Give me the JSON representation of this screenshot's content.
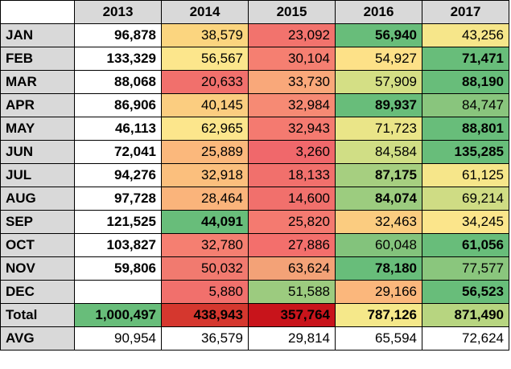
{
  "table": {
    "headers": [
      "",
      "2013",
      "2014",
      "2015",
      "2016",
      "2017"
    ],
    "rows": [
      {
        "label": "JAN",
        "cells": [
          {
            "value": "96,878",
            "color": "#ffffff",
            "bold": true
          },
          {
            "value": "38,579",
            "color": "#fbd57f",
            "bold": false
          },
          {
            "value": "23,092",
            "color": "#f2736d",
            "bold": false
          },
          {
            "value": "56,940",
            "color": "#68bd7a",
            "bold": true
          },
          {
            "value": "43,256",
            "color": "#f6e68a",
            "bold": false
          }
        ]
      },
      {
        "label": "FEB",
        "cells": [
          {
            "value": "133,329",
            "color": "#ffffff",
            "bold": true
          },
          {
            "value": "56,567",
            "color": "#fce68c",
            "bold": false
          },
          {
            "value": "30,104",
            "color": "#f57f71",
            "bold": false
          },
          {
            "value": "54,927",
            "color": "#fde188",
            "bold": false
          },
          {
            "value": "71,471",
            "color": "#68bd7a",
            "bold": true
          }
        ]
      },
      {
        "label": "MAR",
        "cells": [
          {
            "value": "88,068",
            "color": "#ffffff",
            "bold": true
          },
          {
            "value": "20,633",
            "color": "#f1706c",
            "bold": false
          },
          {
            "value": "33,730",
            "color": "#f9a87a",
            "bold": false
          },
          {
            "value": "57,909",
            "color": "#d4df85",
            "bold": false
          },
          {
            "value": "88,190",
            "color": "#68bd7a",
            "bold": true
          }
        ]
      },
      {
        "label": "APR",
        "cells": [
          {
            "value": "86,906",
            "color": "#ffffff",
            "bold": true
          },
          {
            "value": "40,145",
            "color": "#fbcd80",
            "bold": false
          },
          {
            "value": "32,984",
            "color": "#f68a74",
            "bold": false
          },
          {
            "value": "89,937",
            "color": "#68bd7a",
            "bold": true
          },
          {
            "value": "84,747",
            "color": "#89c57d",
            "bold": false
          }
        ]
      },
      {
        "label": "MAY",
        "cells": [
          {
            "value": "46,113",
            "color": "#ffffff",
            "bold": true
          },
          {
            "value": "62,965",
            "color": "#fce68c",
            "bold": false
          },
          {
            "value": "32,943",
            "color": "#f47a70",
            "bold": false
          },
          {
            "value": "71,723",
            "color": "#eae588",
            "bold": false
          },
          {
            "value": "88,801",
            "color": "#68bd7a",
            "bold": true
          }
        ]
      },
      {
        "label": "JUN",
        "cells": [
          {
            "value": "72,041",
            "color": "#ffffff",
            "bold": true
          },
          {
            "value": "25,889",
            "color": "#fbb87c",
            "bold": false
          },
          {
            "value": "3,260",
            "color": "#f0686b",
            "bold": false
          },
          {
            "value": "84,584",
            "color": "#d0de85",
            "bold": false
          },
          {
            "value": "135,285",
            "color": "#68bd7a",
            "bold": true
          }
        ]
      },
      {
        "label": "JUL",
        "cells": [
          {
            "value": "94,276",
            "color": "#ffffff",
            "bold": true
          },
          {
            "value": "32,918",
            "color": "#fbbf7d",
            "bold": false
          },
          {
            "value": "18,133",
            "color": "#f1706c",
            "bold": false
          },
          {
            "value": "87,175",
            "color": "#a6cf80",
            "bold": true
          },
          {
            "value": "61,125",
            "color": "#f6e68a",
            "bold": false
          }
        ]
      },
      {
        "label": "AUG",
        "cells": [
          {
            "value": "97,728",
            "color": "#ffffff",
            "bold": true
          },
          {
            "value": "28,464",
            "color": "#fab47b",
            "bold": false
          },
          {
            "value": "14,600",
            "color": "#f1706c",
            "bold": false
          },
          {
            "value": "84,074",
            "color": "#9ccc7f",
            "bold": true
          },
          {
            "value": "69,214",
            "color": "#cfdc84",
            "bold": false
          }
        ]
      },
      {
        "label": "SEP",
        "cells": [
          {
            "value": "121,525",
            "color": "#ffffff",
            "bold": true
          },
          {
            "value": "44,091",
            "color": "#68bd7a",
            "bold": true
          },
          {
            "value": "25,820",
            "color": "#f47a70",
            "bold": false
          },
          {
            "value": "32,463",
            "color": "#fbcc80",
            "bold": false
          },
          {
            "value": "34,245",
            "color": "#fbe58b",
            "bold": false
          }
        ]
      },
      {
        "label": "OCT",
        "cells": [
          {
            "value": "103,827",
            "color": "#ffffff",
            "bold": true
          },
          {
            "value": "32,780",
            "color": "#f57f71",
            "bold": false
          },
          {
            "value": "27,886",
            "color": "#f36f6c",
            "bold": false
          },
          {
            "value": "60,048",
            "color": "#83c37c",
            "bold": false
          },
          {
            "value": "61,056",
            "color": "#68bd7a",
            "bold": true
          }
        ]
      },
      {
        "label": "NOV",
        "cells": [
          {
            "value": "59,806",
            "color": "#ffffff",
            "bold": true
          },
          {
            "value": "50,032",
            "color": "#f17a6f",
            "bold": false
          },
          {
            "value": "63,624",
            "color": "#f3a277",
            "bold": false
          },
          {
            "value": "78,180",
            "color": "#68bd7a",
            "bold": true
          },
          {
            "value": "77,577",
            "color": "#8ac67d",
            "bold": false
          }
        ]
      },
      {
        "label": "DEC",
        "cells": [
          {
            "value": "",
            "color": "#ffffff",
            "bold": true
          },
          {
            "value": "5,880",
            "color": "#f1706c",
            "bold": false
          },
          {
            "value": "51,588",
            "color": "#9ccb7f",
            "bold": false
          },
          {
            "value": "29,166",
            "color": "#fbb77c",
            "bold": false
          },
          {
            "value": "56,523",
            "color": "#68bd7a",
            "bold": true
          }
        ]
      }
    ],
    "total": {
      "label": "Total",
      "cells": [
        {
          "value": "1,000,497",
          "color": "#68bd7a",
          "bold": true
        },
        {
          "value": "438,943",
          "color": "#d5372e",
          "bold": true
        },
        {
          "value": "357,764",
          "color": "#c8141b",
          "bold": true
        },
        {
          "value": "787,126",
          "color": "#f5e88a",
          "bold": true
        },
        {
          "value": "871,490",
          "color": "#b7d580",
          "bold": true
        }
      ]
    },
    "avg": {
      "label": "AVG",
      "cells": [
        {
          "value": "90,954",
          "color": "#ffffff",
          "bold": false
        },
        {
          "value": "36,579",
          "color": "#ffffff",
          "bold": false
        },
        {
          "value": "29,814",
          "color": "#ffffff",
          "bold": false
        },
        {
          "value": "65,594",
          "color": "#ffffff",
          "bold": false
        },
        {
          "value": "72,624",
          "color": "#ffffff",
          "bold": false
        }
      ]
    }
  }
}
